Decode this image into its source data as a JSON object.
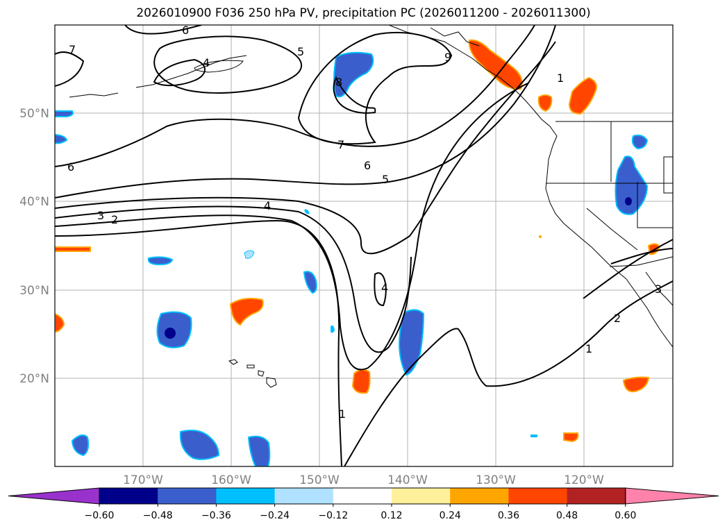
{
  "title": "2026010900 F036 250 hPa PV, precipitation PC (2026011200 - 2026011300)",
  "map": {
    "lon_ticks": [
      "170°W",
      "160°W",
      "150°W",
      "140°W",
      "130°W",
      "120°W"
    ],
    "lat_ticks": [
      "50°N",
      "40°N",
      "30°N",
      "20°N"
    ],
    "pv_contour_labels": [
      {
        "id": "c7a",
        "text": "7"
      },
      {
        "id": "c6a",
        "text": "6"
      },
      {
        "id": "c6b",
        "text": "6"
      },
      {
        "id": "c7b",
        "text": "7"
      },
      {
        "id": "c6c",
        "text": "6"
      },
      {
        "id": "c5",
        "text": "5"
      },
      {
        "id": "c4a",
        "text": "4"
      },
      {
        "id": "c3a",
        "text": "3"
      },
      {
        "id": "c2a",
        "text": "2"
      },
      {
        "id": "c4b",
        "text": "4"
      },
      {
        "id": "c8",
        "text": "8"
      },
      {
        "id": "c4c",
        "text": "4"
      },
      {
        "id": "c1a",
        "text": "1"
      },
      {
        "id": "c1b",
        "text": "1"
      },
      {
        "id": "c2b",
        "text": "2"
      },
      {
        "id": "c3b",
        "text": "3"
      },
      {
        "id": "c1c",
        "text": "1"
      },
      {
        "id": "c5b",
        "text": "5"
      },
      {
        "id": "c9",
        "text": "9"
      }
    ]
  },
  "colorbar": {
    "colors": [
      "#9932cc",
      "#00008b",
      "#3a5fcd",
      "#00bfff",
      "#b0e2ff",
      "#ffffff",
      "#fff09b",
      "#ffa500",
      "#ff4500",
      "#b22222",
      "#ff82ab"
    ],
    "tick_labels": [
      "−0.60",
      "−0.48",
      "−0.36",
      "−0.24",
      "−0.12",
      "0.12",
      "0.24",
      "0.36",
      "0.48",
      "0.60"
    ],
    "ticks": [
      -0.6,
      -0.48,
      -0.36,
      -0.24,
      -0.12,
      0.12,
      0.24,
      0.36,
      0.48,
      0.6
    ]
  }
}
